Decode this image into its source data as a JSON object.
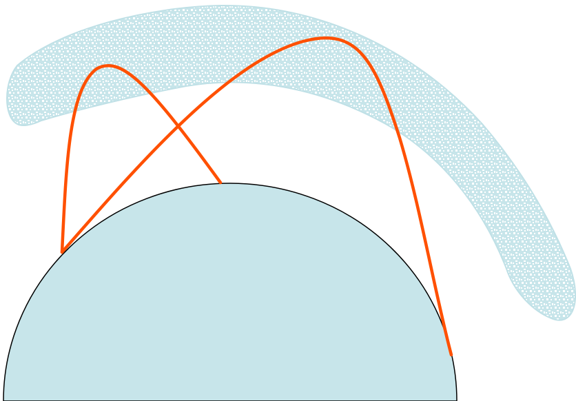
{
  "diagram": {
    "description_free": true,
    "colors": {
      "background": "#ffffff",
      "planet_fill": "#c7e5ea",
      "planet_stroke": "#000000",
      "band_fill": "#c7e5ea",
      "band_stroke": "#bfe0e6",
      "band_pattern_light": "#ffffff",
      "arc_stroke": "#ff5000"
    },
    "elements": {
      "planet": "half-disc",
      "band": "speckled-band",
      "arcs": [
        "arc-short",
        "arc-long"
      ]
    }
  }
}
